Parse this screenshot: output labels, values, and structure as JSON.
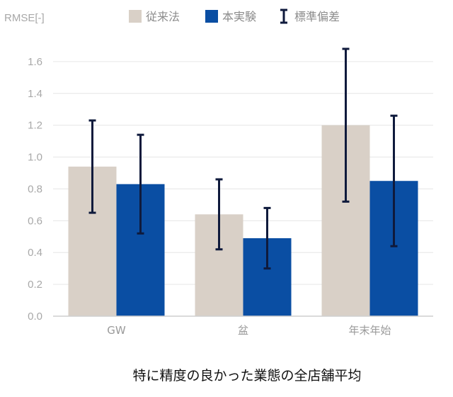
{
  "chart_data": {
    "type": "bar",
    "title": "特に精度の良かった業態の全店舗平均",
    "xlabel": "",
    "ylabel": "RMSE[-]",
    "categories": [
      "GW",
      "盆",
      "年末年始"
    ],
    "series": [
      {
        "name": "従来法",
        "values": [
          0.94,
          0.64,
          1.2
        ],
        "error": [
          0.29,
          0.22,
          0.48
        ],
        "color": "#d9d0c7"
      },
      {
        "name": "本実験",
        "values": [
          0.83,
          0.49,
          0.85
        ],
        "error": [
          0.31,
          0.19,
          0.41
        ],
        "color": "#0a4ea3"
      }
    ],
    "error_label": "標準偏差",
    "error_color": "#0f1a3c",
    "ylim": [
      0,
      1.8
    ],
    "yticks": [
      "0.0",
      "0.2",
      "0.4",
      "0.6",
      "0.8",
      "1.0",
      "1.2",
      "1.4",
      "1.6"
    ],
    "grid": true,
    "legend_position": "top"
  }
}
